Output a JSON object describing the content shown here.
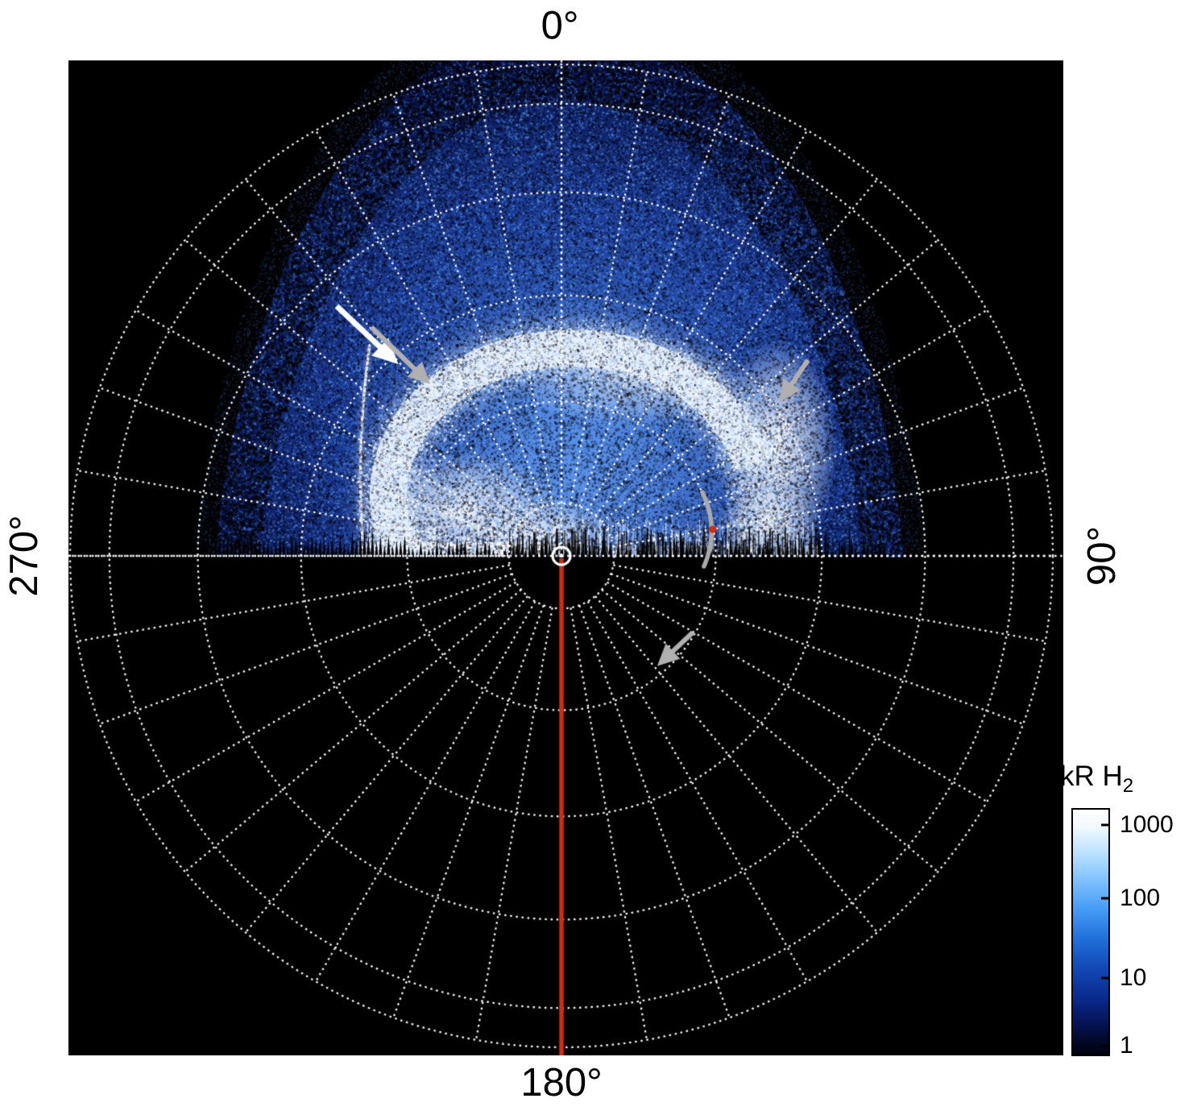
{
  "figure": {
    "angle_labels": {
      "top": "0°",
      "right": "90°",
      "bottom": "180°",
      "left": "270°"
    }
  },
  "colorbar": {
    "title_main": "kR H",
    "title_sub": "2",
    "ticks": [
      "1000",
      "100",
      "10",
      "1"
    ]
  },
  "chart_data": {
    "type": "heatmap",
    "subtype": "polar_auroral_image",
    "title": "",
    "angular_axis": {
      "labels": [
        "0°",
        "90°",
        "180°",
        "270°"
      ],
      "label_positions_deg": [
        0,
        90,
        180,
        270
      ]
    },
    "radial_grid": {
      "n_circles": 6,
      "style": "dotted white"
    },
    "meridian_grid": {
      "spacing_deg": 10,
      "style": "dotted white"
    },
    "colorbar": {
      "label": "kR H2",
      "scale": "log",
      "min": 1,
      "max": 1000,
      "ticks": [
        1000,
        100,
        10,
        1
      ]
    },
    "features": [
      "bright white main auroral emission oval around the pole, open toward lower right",
      "very bright white storm region on the right (dawn) side near 90°",
      "diffuse speckled blue polar emission filling the dayside upper hemisphere",
      "dark nightside (no emission) below the 90°-270° line with jagged terminator spikes",
      "thin faint auroral arc on the upper left indicated by white and gray arrows",
      "red-orange line marking the 180° meridian from the pole to the outer edge",
      "small white circle marking the pole",
      "gray curved annotation with red dot near the right of the pole",
      "gray arrowhead annotation below the terminator on the lower right"
    ],
    "annotations": [
      {
        "type": "arrow",
        "color": "white",
        "location": "upper-left",
        "direction": "down-right"
      },
      {
        "type": "arrow",
        "color": "gray",
        "location": "upper-left",
        "direction": "down-right"
      },
      {
        "type": "arrow",
        "color": "gray",
        "location": "upper-right",
        "direction": "down-left"
      },
      {
        "type": "arrow",
        "color": "gray",
        "location": "lower-middle-right",
        "direction": "down-left"
      },
      {
        "type": "curved-line-with-red-dot",
        "color": "gray",
        "location": "right-of-pole"
      }
    ],
    "colors": {
      "background": "#000000",
      "grid": "#ffffff",
      "meridian_line": "#cf2d0e",
      "annotation_gray": "#b0b0b0",
      "annotation_white": "#ffffff",
      "aurora_palette": [
        "#00020a",
        "#0a2a8c",
        "#1f6fd9",
        "#66aaff",
        "#ffffff"
      ]
    }
  }
}
